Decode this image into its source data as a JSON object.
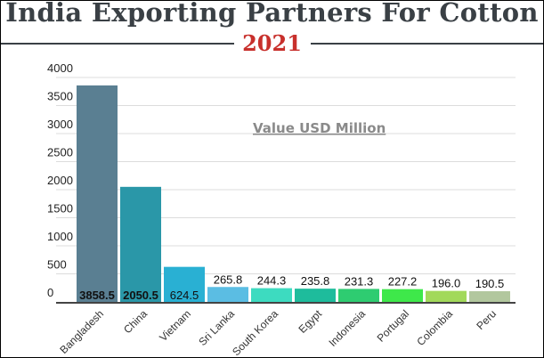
{
  "chart_data": {
    "type": "bar",
    "title": "India Exporting Partners For Cotton",
    "subtitle": "2021",
    "annotation": "Value USD Million",
    "categories": [
      "Bangladesh",
      "China",
      "Vietnam",
      "Sri Lanka",
      "South Korea",
      "Egypt",
      "Indonesia",
      "Portugal",
      "Colombia",
      "Peru"
    ],
    "values": [
      3858.5,
      2050.5,
      624.5,
      265.8,
      244.3,
      235.8,
      231.3,
      227.2,
      196.0,
      190.5
    ],
    "value_labels": [
      "3858.5",
      "2050.5",
      "624.5",
      "265.8",
      "244.3",
      "235.8",
      "231.3",
      "227.2",
      "196.0",
      "190.5"
    ],
    "colors": [
      "#5a7f92",
      "#2a97a8",
      "#29b0d3",
      "#5bbde3",
      "#3ddbc0",
      "#1ebc9c",
      "#2ecc71",
      "#3ee84a",
      "#a2d95a",
      "#b2c79e"
    ],
    "ylim": [
      0,
      4000
    ],
    "yticks": [
      "0",
      "500",
      "1000",
      "1500",
      "2000",
      "2500",
      "3000",
      "3500",
      "4000"
    ],
    "grid": true,
    "legend": "none"
  }
}
